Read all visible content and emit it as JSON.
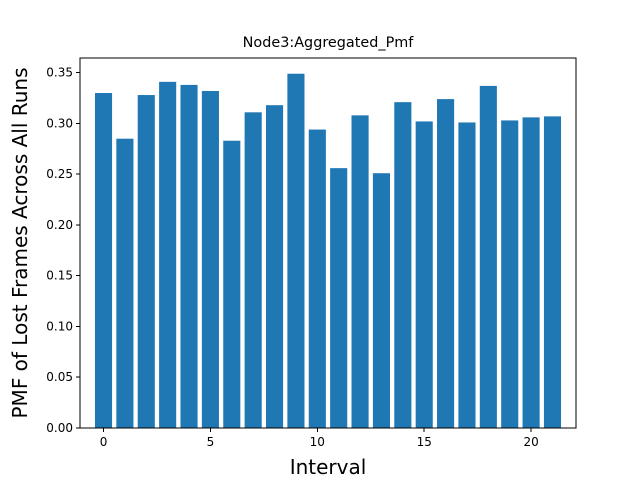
{
  "chart_data": {
    "type": "bar",
    "title": "Node3:Aggregated_Pmf",
    "xlabel": "Interval",
    "ylabel": "PMF of Lost Frames Across All Runs",
    "x": [
      0,
      1,
      2,
      3,
      4,
      5,
      6,
      7,
      8,
      9,
      10,
      11,
      12,
      13,
      14,
      15,
      16,
      17,
      18,
      19,
      20,
      21
    ],
    "values": [
      0.33,
      0.285,
      0.328,
      0.341,
      0.338,
      0.332,
      0.283,
      0.311,
      0.318,
      0.349,
      0.294,
      0.256,
      0.308,
      0.251,
      0.321,
      0.302,
      0.324,
      0.301,
      0.337,
      0.303,
      0.306,
      0.307
    ],
    "xlim": [
      -1.1,
      22.1
    ],
    "ylim": [
      0,
      0.3645
    ],
    "xticks": [
      0,
      5,
      10,
      15,
      20
    ],
    "xtick_labels": [
      "0",
      "5",
      "10",
      "15",
      "20"
    ],
    "yticks": [
      0,
      0.05,
      0.1,
      0.15,
      0.2,
      0.25,
      0.3,
      0.35
    ],
    "ytick_labels": [
      "0.00",
      "0.05",
      "0.10",
      "0.15",
      "0.20",
      "0.25",
      "0.30",
      "0.35"
    ],
    "bar_color": "#1f77b4",
    "grid": false,
    "legend": false
  }
}
